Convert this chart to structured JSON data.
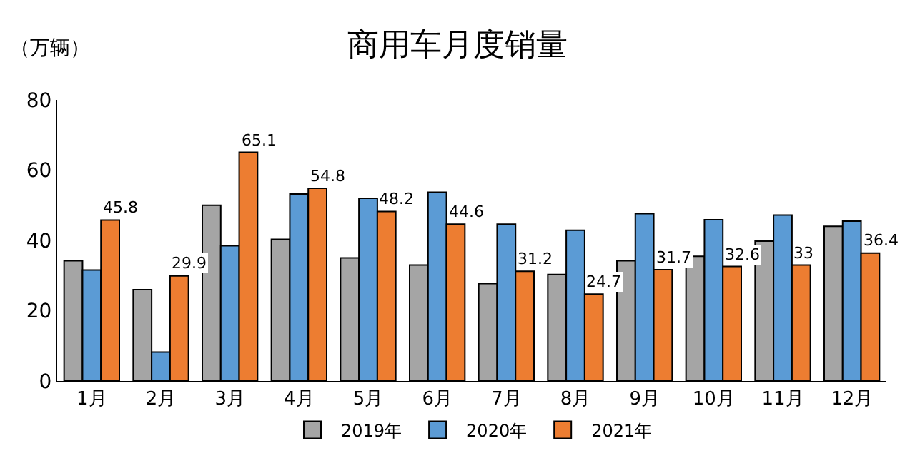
{
  "chart_data": {
    "type": "bar",
    "title": "商用车月度销量",
    "ylabel": "（万辆）",
    "categories": [
      "1月",
      "2月",
      "3月",
      "4月",
      "5月",
      "6月",
      "7月",
      "8月",
      "9月",
      "10月",
      "11月",
      "12月"
    ],
    "series": [
      {
        "name": "2019年",
        "color": "#a5a5a5",
        "values": [
          34.2,
          26,
          50,
          40.3,
          35,
          33,
          27.7,
          30.3,
          34.2,
          35.5,
          39.8,
          44
        ]
      },
      {
        "name": "2020年",
        "color": "#5b9bd5",
        "values": [
          31.6,
          8.2,
          38.5,
          53.2,
          52,
          53.7,
          44.6,
          42.9,
          47.6,
          45.9,
          47.2,
          45.5
        ]
      },
      {
        "name": "2021年",
        "color": "#ed7d31",
        "values": [
          45.8,
          29.9,
          65.1,
          54.8,
          48.2,
          44.6,
          31.2,
          24.7,
          31.7,
          32.6,
          33,
          36.4
        ],
        "value_labels": [
          "45.8",
          "29.9",
          "65.1",
          "54.8",
          "48.2",
          "44.6",
          "31.2",
          "24.7",
          "31.7",
          "32.6",
          "33",
          "36.4"
        ]
      }
    ],
    "ylim": [
      0,
      80
    ],
    "yticks": [
      0,
      20,
      40,
      60,
      80
    ],
    "grid": false,
    "legend": "bottom"
  }
}
